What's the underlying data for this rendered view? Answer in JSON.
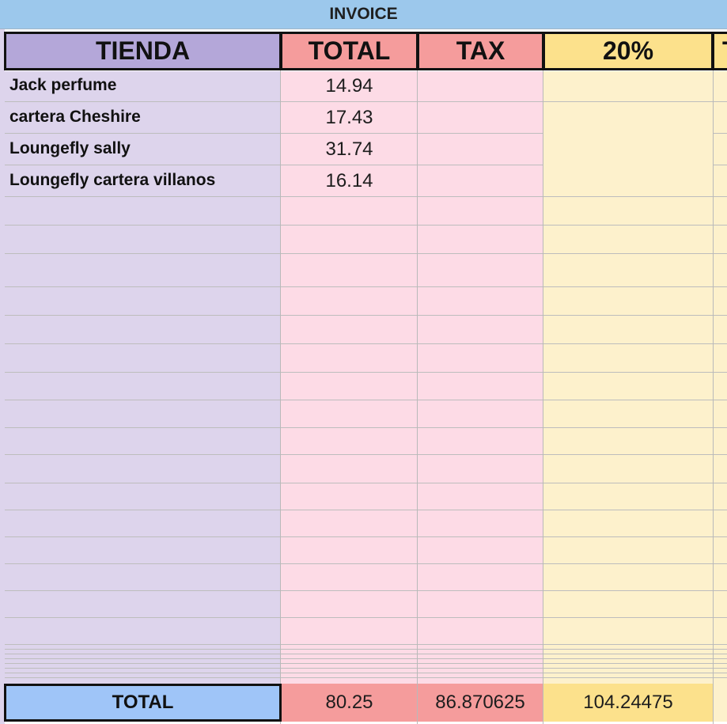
{
  "title": "INVOICE",
  "headers": {
    "tienda": "TIENDA",
    "total": "TOTAL",
    "tax": "TAX",
    "percent": "20%",
    "partial": "T"
  },
  "rows": [
    {
      "name": "Jack perfume",
      "total": "14.94"
    },
    {
      "name": "cartera Cheshire",
      "total": "17.43"
    },
    {
      "name": "Loungefly sally",
      "total": "31.74"
    },
    {
      "name": "Loungefly cartera villanos",
      "total": "16.14"
    }
  ],
  "footer": {
    "label": "TOTAL",
    "total": "80.25",
    "tax": "86.870625",
    "percent": "104.24475"
  },
  "colors": {
    "title_bg": "#9cc8ec",
    "tienda_header": "#b4a7d9",
    "tienda_body": "#ddd4ec",
    "total_header": "#f59c9c",
    "total_body": "#fddbe6",
    "percent_header": "#fce18c",
    "percent_body": "#fdf1cc",
    "footer_label": "#9fc5f8"
  }
}
